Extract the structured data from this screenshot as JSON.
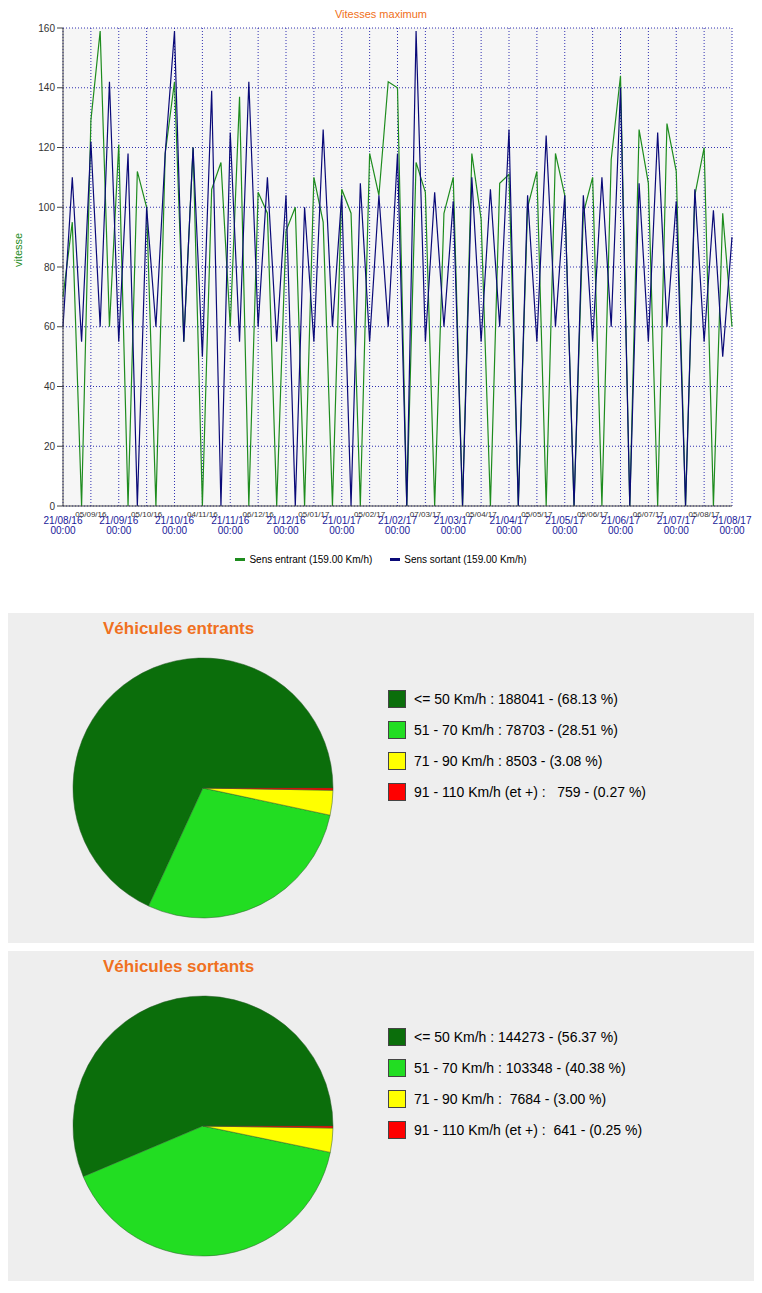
{
  "chart_data": [
    {
      "type": "line",
      "title": "Vitesses maximum",
      "y_label": "vitesse",
      "categories": [
        "21/08/16 00:00",
        null,
        null,
        "05/09/16",
        null,
        null,
        "21/09/16 00:00",
        null,
        null,
        "05/10/16",
        null,
        null,
        "21/10/16 00:00",
        null,
        null,
        "04/11/16",
        null,
        null,
        "21/11/16 00:00",
        null,
        null,
        "06/12/16",
        null,
        null,
        "21/12/16 00:00",
        null,
        null,
        "05/01/17",
        null,
        null,
        "21/01/17 00:00",
        null,
        null,
        "05/02/17",
        null,
        null,
        "21/02/17 00:00",
        null,
        null,
        "07/03/17",
        null,
        null,
        "21/03/17 00:00",
        null,
        null,
        "05/04/17",
        null,
        null,
        "21/04/17 00:00",
        null,
        null,
        "05/05/17",
        null,
        null,
        "21/05/17 00:00",
        null,
        null,
        "05/06/17",
        null,
        null,
        "21/06/17 00:00",
        null,
        null,
        "06/07/17",
        null,
        null,
        "21/07/17 00:00",
        null,
        null,
        "05/08/17",
        null,
        null,
        "21/08/17 00:00"
      ],
      "series": [
        {
          "name": "Sens entrant (159.00 Km/h)",
          "color": "#1e8c1e",
          "values": [
            70,
            95,
            0,
            129,
            159,
            60,
            121,
            0,
            112,
            100,
            0,
            118,
            142,
            55,
            120,
            0,
            106,
            115,
            60,
            137,
            0,
            105,
            98,
            0,
            92,
            100,
            0,
            110,
            95,
            0,
            106,
            98,
            0,
            118,
            104,
            142,
            140,
            0,
            115,
            105,
            0,
            98,
            110,
            0,
            118,
            96,
            0,
            108,
            111,
            0,
            100,
            112,
            0,
            118,
            104,
            0,
            98,
            110,
            0,
            116,
            144,
            0,
            126,
            108,
            0,
            128,
            112,
            0,
            104,
            120,
            0,
            98,
            60
          ]
        },
        {
          "name": "Sens sortant (159.00 Km/h)",
          "color": "#0a0a78",
          "values": [
            60,
            110,
            55,
            122,
            60,
            142,
            55,
            118,
            0,
            100,
            60,
            118,
            159,
            55,
            120,
            50,
            139,
            0,
            125,
            55,
            142,
            60,
            110,
            55,
            104,
            0,
            100,
            55,
            126,
            60,
            104,
            0,
            108,
            55,
            104,
            60,
            118,
            0,
            159,
            55,
            105,
            60,
            102,
            0,
            110,
            55,
            106,
            60,
            126,
            0,
            104,
            55,
            124,
            60,
            104,
            0,
            104,
            55,
            110,
            60,
            140,
            0,
            108,
            55,
            125,
            60,
            102,
            0,
            106,
            55,
            99,
            50,
            90
          ]
        }
      ],
      "ylim": [
        0,
        160
      ],
      "yticks": [
        0,
        20,
        40,
        60,
        80,
        100,
        120,
        140,
        160
      ],
      "grid": true,
      "legend": "bottom"
    },
    {
      "type": "pie",
      "title": "Véhicules entrants",
      "categories": [
        "<= 50 Km/h : 188041 - (68.13 %)",
        "51 - 70 Km/h : 78703 - (28.51 %)",
        "71 - 90 Km/h : 8503 - (3.08 %)",
        "91 - 110 Km/h (et +) :   759 - (0.27 %)"
      ],
      "values": [
        188041,
        78703,
        8503,
        759
      ],
      "colors": [
        "#0b6e0b",
        "#22dd22",
        "#ffff00",
        "#ff0000"
      ],
      "legend": "right"
    },
    {
      "type": "pie",
      "title": "Véhicules sortants",
      "categories": [
        "<= 50 Km/h : 144273 - (56.37 %)",
        "51 - 70 Km/h : 103348 - (40.38 %)",
        "71 - 90 Km/h :  7684 - (3.00 %)",
        "91 - 110 Km/h (et +) :  641 - (0.25 %)"
      ],
      "values": [
        144273,
        103348,
        7684,
        641
      ],
      "colors": [
        "#0b6e0b",
        "#22dd22",
        "#ffff00",
        "#ff0000"
      ],
      "legend": "right"
    }
  ]
}
